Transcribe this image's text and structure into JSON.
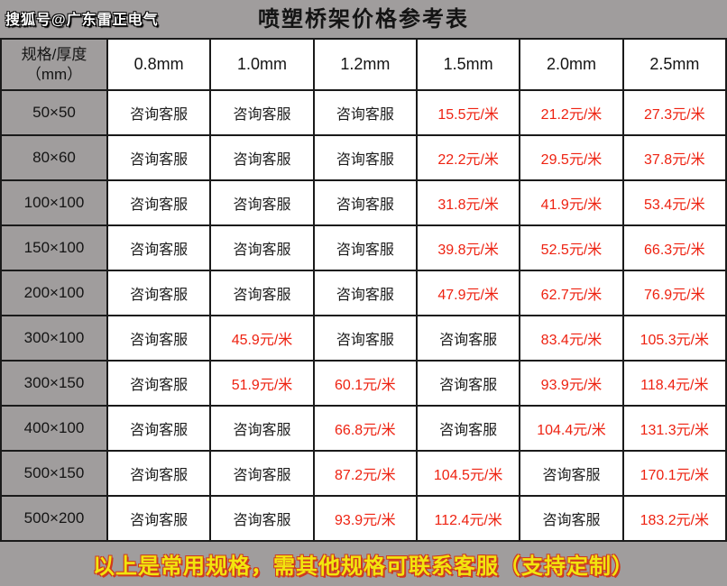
{
  "watermark": "搜狐号@广东雷正电气",
  "title": "喷塑桥架价格参考表",
  "table": {
    "corner_header_line1": "规格/厚度",
    "corner_header_line2": "（mm）",
    "thickness_headers": [
      "0.8mm",
      "1.0mm",
      "1.2mm",
      "1.5mm",
      "2.0mm",
      "2.5mm"
    ],
    "consult_label": "咨询客服",
    "rows": [
      {
        "spec": "50×50",
        "cells": [
          "咨询客服",
          "咨询客服",
          "咨询客服",
          "15.5元/米",
          "21.2元/米",
          "27.3元/米"
        ]
      },
      {
        "spec": "80×60",
        "cells": [
          "咨询客服",
          "咨询客服",
          "咨询客服",
          "22.2元/米",
          "29.5元/米",
          "37.8元/米"
        ]
      },
      {
        "spec": "100×100",
        "cells": [
          "咨询客服",
          "咨询客服",
          "咨询客服",
          "31.8元/米",
          "41.9元/米",
          "53.4元/米"
        ]
      },
      {
        "spec": "150×100",
        "cells": [
          "咨询客服",
          "咨询客服",
          "咨询客服",
          "39.8元/米",
          "52.5元/米",
          "66.3元/米"
        ]
      },
      {
        "spec": "200×100",
        "cells": [
          "咨询客服",
          "咨询客服",
          "咨询客服",
          "47.9元/米",
          "62.7元/米",
          "76.9元/米"
        ]
      },
      {
        "spec": "300×100",
        "cells": [
          "咨询客服",
          "45.9元/米",
          "咨询客服",
          "咨询客服",
          "83.4元/米",
          "105.3元/米"
        ]
      },
      {
        "spec": "300×150",
        "cells": [
          "咨询客服",
          "51.9元/米",
          "60.1元/米",
          "咨询客服",
          "93.9元/米",
          "118.4元/米"
        ]
      },
      {
        "spec": "400×100",
        "cells": [
          "咨询客服",
          "咨询客服",
          "66.8元/米",
          "咨询客服",
          "104.4元/米",
          "131.3元/米"
        ]
      },
      {
        "spec": "500×150",
        "cells": [
          "咨询客服",
          "咨询客服",
          "87.2元/米",
          "104.5元/米",
          "咨询客服",
          "170.1元/米"
        ]
      },
      {
        "spec": "500×200",
        "cells": [
          "咨询客服",
          "咨询客服",
          "93.9元/米",
          "112.4元/米",
          "咨询客服",
          "183.2元/米"
        ]
      }
    ]
  },
  "footer": {
    "note": "以上是常用规格，需其他规格可联系客服（支持定制）"
  },
  "colors": {
    "page_gray": "#a09d9d",
    "cell_white": "#ffffff",
    "border_black": "#1a1a1a",
    "price_red": "#ee2211",
    "footer_yellow": "#f2e50e",
    "footer_outline_red": "#cf3a1e"
  }
}
